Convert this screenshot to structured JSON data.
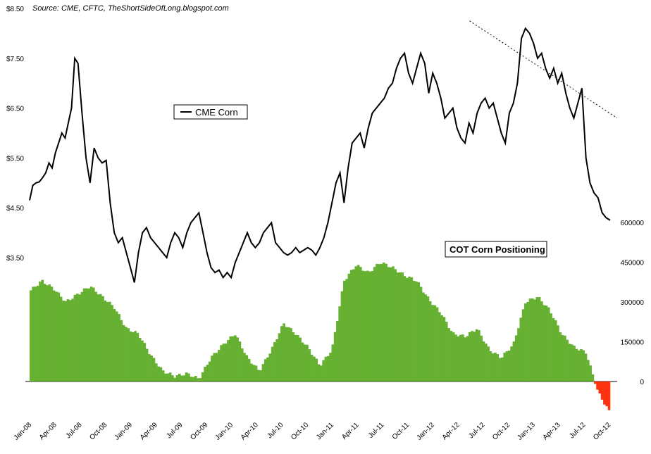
{
  "chart_data": {
    "type": "line",
    "source": "Source: CME, CFTC, TheShortSideOfLong.blogspot.com",
    "legend": {
      "label": "CME Corn",
      "placement": "upper-left"
    },
    "annotation": "COT Corn Positioning",
    "grid": false,
    "left_axis": {
      "ticks": [
        "$8.50",
        "$7.50",
        "$6.50",
        "$5.50",
        "$4.50",
        "$3.50"
      ],
      "values": [
        8.5,
        7.5,
        6.5,
        5.5,
        4.5,
        3.5
      ]
    },
    "right_axis": {
      "ticks": [
        "600000",
        "450000",
        "300000",
        "150000",
        "0"
      ],
      "values": [
        600000,
        450000,
        300000,
        150000,
        0
      ]
    },
    "x_ticks": [
      "Jan-08",
      "Apr-08",
      "Jul-08",
      "Oct-08",
      "Jan-09",
      "Apr-09",
      "Jul-09",
      "Oct-09",
      "Jan-10",
      "Apr-10",
      "Jul-10",
      "Oct-10",
      "Jan-11",
      "Apr-11",
      "Jul-11",
      "Oct-11",
      "Jan-12",
      "Apr-12",
      "Jul-12",
      "Oct-12",
      "Jan-13",
      "Apr-13",
      "Jul-12",
      "Oct-12"
    ],
    "colors": {
      "price": "#000000",
      "positive": "#66b032",
      "negative": "#ff3311",
      "trendline": "#000000"
    },
    "series": [
      {
        "name": "CME Corn",
        "type": "line",
        "axis": "left",
        "x": [
          0,
          0.4,
          0.8,
          1.2,
          1.6,
          2.0,
          2.4,
          2.8,
          3.2,
          3.6,
          4.0,
          4.4,
          4.8,
          5.2,
          5.6,
          6.0,
          6.5,
          7.0,
          7.5,
          8.0,
          8.5,
          9.0,
          9.5,
          10.0,
          10.5,
          11.0,
          11.5,
          12.0,
          12.5,
          13.0,
          13.5,
          14.0,
          14.5,
          15.0,
          15.5,
          16.0,
          16.5,
          17.0,
          17.5,
          18.0,
          18.5,
          19.0,
          19.5,
          20.0,
          20.5,
          21.0,
          21.5,
          22.0,
          22.5,
          23.0,
          23.5,
          24.0,
          24.5,
          25.0,
          25.5,
          26.0,
          26.5,
          27.0,
          27.5,
          28.0,
          28.5,
          29.0,
          29.5,
          30.0,
          30.5,
          31.0,
          31.5,
          32.0,
          32.5,
          33.0,
          33.5,
          34.0,
          34.5,
          35.0,
          35.5,
          36.0,
          36.5,
          37.0,
          37.5,
          38.0,
          38.5,
          39.0,
          39.5,
          40.0,
          40.5,
          41.0,
          41.5,
          42.0,
          42.5,
          43.0,
          43.5,
          44.0,
          44.5,
          45.0,
          45.5,
          46.0,
          46.5,
          47.0,
          47.5,
          48.0,
          48.5,
          49.0,
          49.5,
          50.0,
          50.5,
          51.0,
          51.5,
          52.0,
          52.5,
          53.0,
          53.5,
          54.0,
          54.5,
          55.0,
          55.5,
          56.0,
          56.5,
          57.0,
          57.5,
          58.0,
          58.5,
          59.0,
          59.5,
          60.0,
          60.5,
          61.0,
          61.5,
          62.0,
          62.5,
          63.0,
          63.5,
          64.0,
          64.5,
          65.0,
          65.5,
          66.0,
          66.5,
          67.0,
          67.5,
          68.0,
          68.5,
          69.0,
          69.5,
          70.0,
          70.5,
          71.0,
          71.5,
          72.0
        ],
        "values": [
          4.65,
          4.95,
          5.0,
          5.02,
          5.1,
          5.2,
          5.4,
          5.3,
          5.6,
          5.8,
          6.0,
          5.9,
          6.2,
          6.5,
          7.5,
          7.4,
          6.4,
          5.5,
          5.0,
          5.7,
          5.5,
          5.4,
          5.45,
          4.6,
          4.0,
          3.8,
          3.9,
          3.6,
          3.3,
          3.0,
          3.6,
          4.0,
          4.1,
          3.9,
          3.8,
          3.7,
          3.6,
          3.5,
          3.8,
          4.0,
          3.9,
          3.7,
          4.0,
          4.2,
          4.3,
          4.4,
          4.0,
          3.6,
          3.3,
          3.2,
          3.25,
          3.1,
          3.2,
          3.1,
          3.4,
          3.6,
          3.8,
          4.0,
          3.8,
          3.7,
          3.8,
          4.0,
          4.1,
          4.2,
          3.8,
          3.7,
          3.6,
          3.55,
          3.6,
          3.7,
          3.6,
          3.65,
          3.7,
          3.65,
          3.55,
          3.7,
          3.9,
          4.2,
          4.6,
          5.0,
          5.2,
          4.6,
          5.3,
          5.8,
          5.9,
          6.0,
          5.7,
          6.1,
          6.4,
          6.5,
          6.6,
          6.7,
          6.9,
          7.0,
          7.3,
          7.5,
          7.6,
          7.2,
          7.0,
          7.3,
          7.6,
          7.4,
          6.8,
          7.2,
          7.0,
          6.7,
          6.3,
          6.4,
          6.5,
          6.1,
          5.9,
          5.8,
          6.2,
          6.0,
          6.4,
          6.6,
          6.7,
          6.5,
          6.6,
          6.3,
          6.0,
          5.8,
          6.4,
          6.6,
          7.0,
          7.9,
          8.1,
          8.0,
          7.8,
          7.5,
          7.6,
          7.3,
          7.1,
          7.3,
          7.0,
          7.2,
          6.8,
          6.5,
          6.3,
          6.6,
          6.9,
          5.5,
          5.0,
          4.8,
          4.7,
          4.4,
          4.3,
          4.25
        ]
      },
      {
        "name": "COT Corn Positioning",
        "type": "bar",
        "axis": "right",
        "x": [
          0,
          1.5,
          3.0,
          4.5,
          6.0,
          7.5,
          9.0,
          10.5,
          12.0,
          13.5,
          15.0,
          16.5,
          18.0,
          19.5,
          21.0,
          22.5,
          24.0,
          25.5,
          27.0,
          28.5,
          30.0,
          31.5,
          33.0,
          34.5,
          36.0,
          37.5,
          39.0,
          40.5,
          42.0,
          43.5,
          45.0,
          46.5,
          48.0,
          49.5,
          51.0,
          52.5,
          54.0,
          55.5,
          57.0,
          58.5,
          60.0,
          61.5,
          63.0,
          64.5,
          66.0,
          67.5,
          69.0,
          70.5,
          72.0
        ],
        "values": [
          340000,
          380000,
          350000,
          300000,
          330000,
          360000,
          320000,
          280000,
          200000,
          180000,
          100000,
          40000,
          20000,
          30000,
          10000,
          90000,
          140000,
          180000,
          90000,
          40000,
          120000,
          220000,
          180000,
          130000,
          60000,
          120000,
          380000,
          440000,
          410000,
          450000,
          430000,
          400000,
          380000,
          310000,
          260000,
          180000,
          170000,
          200000,
          120000,
          90000,
          140000,
          300000,
          320000,
          270000,
          180000,
          130000,
          110000,
          -40000,
          -120000
        ]
      }
    ],
    "trendline": {
      "from": [
        75.8,
        8.25
      ],
      "to": [
        100,
        6.3
      ]
    }
  }
}
